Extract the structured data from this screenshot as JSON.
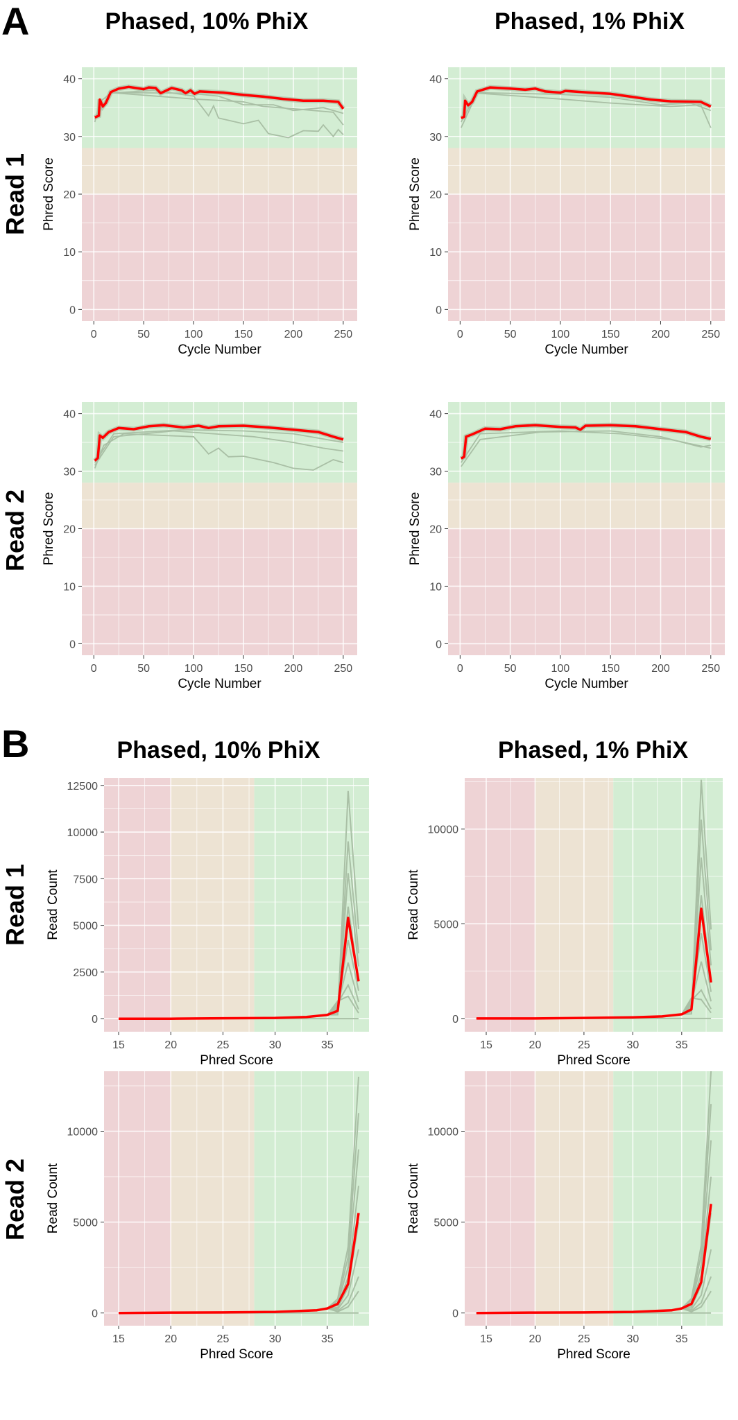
{
  "figure": {
    "panel_letters": [
      "A",
      "B"
    ],
    "column_titles": [
      "Phased, 10% PhiX",
      "Phased, 1% PhiX"
    ],
    "row_labels": [
      "Read 1",
      "Read 2"
    ]
  },
  "colors": {
    "mean_line": "#ff0000",
    "sample_lines": "#a9bfa5",
    "good_band": "#d3edd3",
    "warn_band": "#ede3d3",
    "bad_band": "#eed3d5"
  },
  "chart_data": [
    {
      "type": "line",
      "panel": "A",
      "row": "Read 1",
      "column": "Phased, 10% PhiX",
      "xlabel": "Cycle Number",
      "ylabel": "Phred Score",
      "xlim": [
        -12,
        264
      ],
      "ylim": [
        -2,
        42
      ],
      "xticks": [
        0,
        50,
        100,
        150,
        200,
        250
      ],
      "yticks": [
        0,
        10,
        20,
        30,
        40
      ],
      "bands_y": [
        20,
        28
      ],
      "mean": [
        [
          1,
          33.3
        ],
        [
          5,
          33.6
        ],
        [
          6,
          36.4
        ],
        [
          9,
          35.2
        ],
        [
          12,
          35.8
        ],
        [
          17,
          37.7
        ],
        [
          25,
          38.3
        ],
        [
          35,
          38.6
        ],
        [
          50,
          38.2
        ],
        [
          55,
          38.5
        ],
        [
          62,
          38.4
        ],
        [
          67,
          37.5
        ],
        [
          78,
          38.4
        ],
        [
          88,
          38
        ],
        [
          92,
          37.5
        ],
        [
          97,
          38
        ],
        [
          101,
          37.4
        ],
        [
          106,
          37.8
        ],
        [
          130,
          37.6
        ],
        [
          150,
          37.2
        ],
        [
          170,
          36.9
        ],
        [
          190,
          36.5
        ],
        [
          210,
          36.2
        ],
        [
          230,
          36.2
        ],
        [
          245,
          36
        ],
        [
          250,
          34.8
        ]
      ],
      "samples": [
        [
          [
            1,
            32.5
          ],
          [
            6,
            36
          ],
          [
            17,
            37.5
          ],
          [
            60,
            38
          ],
          [
            100,
            37
          ],
          [
            115,
            33.6
          ],
          [
            120,
            35.3
          ],
          [
            125,
            33.2
          ],
          [
            150,
            32.2
          ],
          [
            165,
            32.8
          ],
          [
            175,
            30.5
          ],
          [
            195,
            29.8
          ],
          [
            210,
            31
          ],
          [
            225,
            30.9
          ],
          [
            230,
            32
          ],
          [
            240,
            30
          ],
          [
            245,
            31.2
          ],
          [
            250,
            30.3
          ]
        ],
        [
          [
            1,
            33
          ],
          [
            17,
            37.6
          ],
          [
            100,
            36.5
          ],
          [
            130,
            36.2
          ],
          [
            150,
            36
          ],
          [
            170,
            35.2
          ],
          [
            200,
            34.8
          ],
          [
            240,
            34.2
          ],
          [
            250,
            32
          ]
        ],
        [
          [
            1,
            33
          ],
          [
            17,
            37.6
          ],
          [
            95,
            37.5
          ],
          [
            125,
            37
          ],
          [
            150,
            35.5
          ],
          [
            180,
            35.5
          ],
          [
            200,
            34.5
          ],
          [
            230,
            35
          ],
          [
            250,
            34
          ]
        ]
      ]
    },
    {
      "type": "line",
      "panel": "A",
      "row": "Read 1",
      "column": "Phased, 1% PhiX",
      "xlabel": "Cycle Number",
      "ylabel": "Phred Score",
      "xlim": [
        -12,
        264
      ],
      "ylim": [
        -2,
        42
      ],
      "xticks": [
        0,
        50,
        100,
        150,
        200,
        250
      ],
      "yticks": [
        0,
        10,
        20,
        30,
        40
      ],
      "bands_y": [
        20,
        28
      ],
      "mean": [
        [
          1,
          33.2
        ],
        [
          4,
          33.4
        ],
        [
          5,
          36.2
        ],
        [
          8,
          35.4
        ],
        [
          12,
          36
        ],
        [
          17,
          37.8
        ],
        [
          30,
          38.5
        ],
        [
          50,
          38.3
        ],
        [
          65,
          38.1
        ],
        [
          75,
          38.3
        ],
        [
          85,
          37.8
        ],
        [
          100,
          37.6
        ],
        [
          105,
          37.9
        ],
        [
          130,
          37.6
        ],
        [
          150,
          37.4
        ],
        [
          170,
          36.9
        ],
        [
          190,
          36.4
        ],
        [
          210,
          36.1
        ],
        [
          240,
          36
        ],
        [
          250,
          35.2
        ]
      ],
      "samples": [
        [
          [
            1,
            31.5
          ],
          [
            17,
            37.5
          ],
          [
            100,
            36.5
          ],
          [
            120,
            36.2
          ],
          [
            150,
            35.8
          ],
          [
            180,
            35.5
          ],
          [
            210,
            35.2
          ],
          [
            240,
            35.5
          ],
          [
            250,
            31.5
          ]
        ],
        [
          [
            1,
            32.5
          ],
          [
            17,
            37.6
          ],
          [
            100,
            37.3
          ],
          [
            150,
            36.8
          ],
          [
            200,
            35.5
          ],
          [
            230,
            35.8
          ],
          [
            250,
            34.5
          ]
        ]
      ]
    },
    {
      "type": "line",
      "panel": "A",
      "row": "Read 2",
      "column": "Phased, 10% PhiX",
      "xlabel": "Cycle Number",
      "ylabel": "Phred Score",
      "xlim": [
        -12,
        264
      ],
      "ylim": [
        -2,
        42
      ],
      "xticks": [
        0,
        50,
        100,
        150,
        200,
        250
      ],
      "yticks": [
        0,
        10,
        20,
        30,
        40
      ],
      "bands_y": [
        20,
        28
      ],
      "mean": [
        [
          1,
          31.8
        ],
        [
          4,
          32.3
        ],
        [
          6,
          36.2
        ],
        [
          9,
          35.8
        ],
        [
          15,
          36.8
        ],
        [
          25,
          37.5
        ],
        [
          40,
          37.3
        ],
        [
          55,
          37.8
        ],
        [
          70,
          38
        ],
        [
          90,
          37.6
        ],
        [
          105,
          37.9
        ],
        [
          115,
          37.5
        ],
        [
          125,
          37.8
        ],
        [
          150,
          37.9
        ],
        [
          175,
          37.6
        ],
        [
          200,
          37.2
        ],
        [
          225,
          36.8
        ],
        [
          240,
          36
        ],
        [
          250,
          35.5
        ]
      ],
      "samples": [
        [
          [
            1,
            30.5
          ],
          [
            10,
            34.5
          ],
          [
            30,
            36.5
          ],
          [
            100,
            36
          ],
          [
            115,
            33
          ],
          [
            125,
            34
          ],
          [
            135,
            32.5
          ],
          [
            150,
            32.6
          ],
          [
            180,
            31.5
          ],
          [
            200,
            30.5
          ],
          [
            220,
            30.2
          ],
          [
            240,
            32
          ],
          [
            250,
            31.5
          ]
        ],
        [
          [
            1,
            31
          ],
          [
            20,
            36
          ],
          [
            80,
            37
          ],
          [
            120,
            36.5
          ],
          [
            160,
            36
          ],
          [
            200,
            35
          ],
          [
            230,
            34
          ],
          [
            250,
            33.5
          ]
        ],
        [
          [
            1,
            31.5
          ],
          [
            20,
            36.5
          ],
          [
            90,
            37.2
          ],
          [
            150,
            37
          ],
          [
            200,
            36.5
          ],
          [
            250,
            35
          ]
        ]
      ]
    },
    {
      "type": "line",
      "panel": "A",
      "row": "Read 2",
      "column": "Phased, 1% PhiX",
      "xlabel": "Cycle Number",
      "ylabel": "Phred Score",
      "xlim": [
        -12,
        264
      ],
      "ylim": [
        -2,
        42
      ],
      "xticks": [
        0,
        50,
        100,
        150,
        200,
        250
      ],
      "yticks": [
        0,
        10,
        20,
        30,
        40
      ],
      "bands_y": [
        20,
        28
      ],
      "mean": [
        [
          1,
          32.2
        ],
        [
          4,
          32.5
        ],
        [
          6,
          36
        ],
        [
          12,
          36.4
        ],
        [
          25,
          37.4
        ],
        [
          40,
          37.3
        ],
        [
          55,
          37.8
        ],
        [
          75,
          38
        ],
        [
          100,
          37.7
        ],
        [
          115,
          37.6
        ],
        [
          120,
          37.2
        ],
        [
          125,
          37.9
        ],
        [
          150,
          38
        ],
        [
          175,
          37.8
        ],
        [
          200,
          37.3
        ],
        [
          225,
          36.8
        ],
        [
          240,
          36
        ],
        [
          250,
          35.6
        ]
      ],
      "samples": [
        [
          [
            1,
            30.8
          ],
          [
            20,
            35.5
          ],
          [
            80,
            36.8
          ],
          [
            150,
            37
          ],
          [
            200,
            36
          ],
          [
            240,
            34.2
          ],
          [
            250,
            34.5
          ]
        ],
        [
          [
            1,
            31.5
          ],
          [
            20,
            36.5
          ],
          [
            100,
            37
          ],
          [
            160,
            36.5
          ],
          [
            210,
            35.5
          ],
          [
            250,
            34
          ]
        ]
      ]
    },
    {
      "type": "line",
      "panel": "B",
      "row": "Read 1",
      "column": "Phased, 10% PhiX",
      "xlabel": "Phred Score",
      "ylabel": "Read Count",
      "xlim": [
        13.6,
        39
      ],
      "ylim": [
        -700,
        12900
      ],
      "xticks": [
        15,
        20,
        25,
        30,
        35
      ],
      "yticks": [
        0,
        2500,
        5000,
        7500,
        10000,
        12500
      ],
      "bands_x": [
        20,
        28
      ],
      "mean": [
        [
          15,
          0
        ],
        [
          20,
          0
        ],
        [
          25,
          20
        ],
        [
          30,
          40
        ],
        [
          33,
          90
        ],
        [
          35,
          200
        ],
        [
          36,
          420
        ],
        [
          37,
          5400
        ],
        [
          38,
          2000
        ]
      ],
      "sample_peaks": [
        12200,
        9500,
        7800,
        6000,
        4200,
        3000,
        1800,
        1200
      ],
      "sample_ends": [
        4800,
        3500,
        2800,
        2000,
        1500,
        900,
        500,
        300
      ]
    },
    {
      "type": "line",
      "panel": "B",
      "row": "Read 1",
      "column": "Phased, 1% PhiX",
      "xlabel": "Phred Score",
      "ylabel": "Read Count",
      "xlim": [
        12.8,
        39.2
      ],
      "ylim": [
        -700,
        12700
      ],
      "xticks": [
        15,
        20,
        25,
        30,
        35
      ],
      "yticks": [
        0,
        5000,
        10000
      ],
      "bands_x": [
        20,
        28
      ],
      "mean": [
        [
          14,
          0
        ],
        [
          20,
          0
        ],
        [
          25,
          30
        ],
        [
          30,
          60
        ],
        [
          33,
          110
        ],
        [
          35,
          220
        ],
        [
          36,
          480
        ],
        [
          37,
          5800
        ],
        [
          38,
          1900
        ]
      ],
      "sample_peaks": [
        12600,
        10500,
        8500,
        6500,
        4500,
        3000,
        1500,
        1000
      ],
      "sample_ends": [
        4700,
        3600,
        2800,
        2000,
        1400,
        900,
        500,
        300
      ]
    },
    {
      "type": "line",
      "panel": "B",
      "row": "Read 2",
      "column": "Phased, 10% PhiX",
      "xlabel": "Phred Score",
      "ylabel": "Read Count",
      "xlim": [
        13.6,
        39
      ],
      "ylim": [
        -700,
        13300
      ],
      "xticks": [
        15,
        20,
        25,
        30,
        35
      ],
      "yticks": [
        0,
        5000,
        10000
      ],
      "bands_x": [
        20,
        28
      ],
      "mean": [
        [
          15,
          0
        ],
        [
          20,
          20
        ],
        [
          25,
          30
        ],
        [
          30,
          60
        ],
        [
          34,
          150
        ],
        [
          35,
          250
        ],
        [
          36,
          500
        ],
        [
          37,
          1600
        ],
        [
          38,
          5500
        ]
      ],
      "sample_peaks": [
        13000,
        11000,
        9000,
        7000,
        5000,
        3500,
        2000,
        1200
      ],
      "sample_ends": [
        13000,
        11000,
        9000,
        7000,
        5000,
        3500,
        2000,
        1200
      ]
    },
    {
      "type": "line",
      "panel": "B",
      "row": "Read 2",
      "column": "Phased, 1% PhiX",
      "xlabel": "Phred Score",
      "ylabel": "Read Count",
      "xlim": [
        12.8,
        39.2
      ],
      "ylim": [
        -700,
        13300
      ],
      "xticks": [
        15,
        20,
        25,
        30,
        35
      ],
      "yticks": [
        0,
        5000,
        10000
      ],
      "bands_x": [
        20,
        28
      ],
      "mean": [
        [
          14,
          0
        ],
        [
          20,
          20
        ],
        [
          25,
          30
        ],
        [
          30,
          60
        ],
        [
          34,
          150
        ],
        [
          35,
          250
        ],
        [
          36,
          500
        ],
        [
          37,
          1700
        ],
        [
          38,
          6000
        ]
      ],
      "sample_peaks": [
        13300,
        11500,
        9500,
        7500,
        5500,
        3500,
        2000,
        1200
      ],
      "sample_ends": [
        13300,
        11500,
        9500,
        7500,
        5500,
        3500,
        2000,
        1200
      ]
    }
  ]
}
